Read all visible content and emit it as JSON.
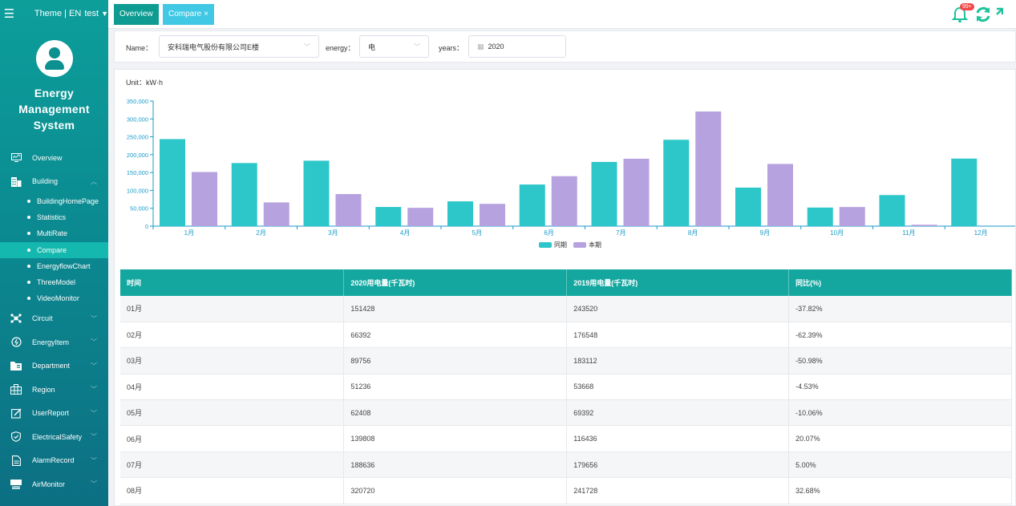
{
  "header": {
    "theme_label": "Theme | EN",
    "user_name": "test",
    "notification_badge": "99+"
  },
  "sidebar": {
    "title_line1": "Energy",
    "title_line2": "Management",
    "title_line3": "System",
    "items": [
      {
        "label": "Overview",
        "icon": "monitor-icon"
      },
      {
        "label": "Building",
        "icon": "building-icon",
        "expanded": true
      },
      {
        "label": "Circuit",
        "icon": "circuit-icon"
      },
      {
        "label": "EnergyItem",
        "icon": "energy-icon"
      },
      {
        "label": "Department",
        "icon": "folder-icon"
      },
      {
        "label": "Region",
        "icon": "region-grid-icon"
      },
      {
        "label": "UserReport",
        "icon": "edit-icon"
      },
      {
        "label": "ElectricalSafety",
        "icon": "shield-icon"
      },
      {
        "label": "AlarmRecord",
        "icon": "document-icon"
      },
      {
        "label": "AirMonitor",
        "icon": "air-unit-icon"
      }
    ],
    "building_subitems": [
      "BuildingHomePage",
      "Statistics",
      "MultiRate",
      "Compare",
      "EnergyflowChart",
      "ThreeModel",
      "VideoMonitor"
    ],
    "active_subitem": "Compare"
  },
  "tabs": {
    "overview": "Overview",
    "compare": "Compare",
    "close_symbol": "×"
  },
  "filter": {
    "name_label": "Name：",
    "name_value": "安科瑞电气股份有限公司E楼",
    "energy_label": "energy：",
    "energy_value": "电",
    "years_label": "years：",
    "years_value": "2020"
  },
  "chart_unit": "Unit：kW·h",
  "chart_data": {
    "type": "bar",
    "categories": [
      "1月",
      "2月",
      "3月",
      "4月",
      "5月",
      "6月",
      "7月",
      "8月",
      "9月",
      "10月",
      "11月",
      "12月"
    ],
    "series": [
      {
        "name": "同期",
        "color": "#2ec7c9",
        "values": [
          243520,
          176548,
          183112,
          53668,
          69392,
          116436,
          179656,
          241728,
          107800,
          52000,
          87000,
          189000
        ]
      },
      {
        "name": "本期",
        "color": "#b6a2de",
        "values": [
          151428,
          66392,
          89756,
          51236,
          62408,
          139808,
          188636,
          320720,
          174000,
          53500,
          4000,
          null
        ]
      }
    ],
    "ylim": [
      0,
      350000
    ],
    "yticks": [
      "0",
      "50,000",
      "100,000",
      "150,000",
      "200,000",
      "250,000",
      "300,000",
      "350,000"
    ],
    "legend_position": "bottom-center",
    "grid": false
  },
  "table": {
    "headers": [
      "时间",
      "2020用电量(千瓦时)",
      "2019用电量(千瓦时)",
      "同比(%)"
    ],
    "rows": [
      [
        "01月",
        "151428",
        "243520",
        "-37.82%"
      ],
      [
        "02月",
        "66392",
        "176548",
        "-62.39%"
      ],
      [
        "03月",
        "89756",
        "183112",
        "-50.98%"
      ],
      [
        "04月",
        "51236",
        "53668",
        "-4.53%"
      ],
      [
        "05月",
        "62408",
        "69392",
        "-10.06%"
      ],
      [
        "06月",
        "139808",
        "116436",
        "20.07%"
      ],
      [
        "07月",
        "188636",
        "179656",
        "5.00%"
      ],
      [
        "08月",
        "320720",
        "241728",
        "32.68%"
      ]
    ]
  }
}
